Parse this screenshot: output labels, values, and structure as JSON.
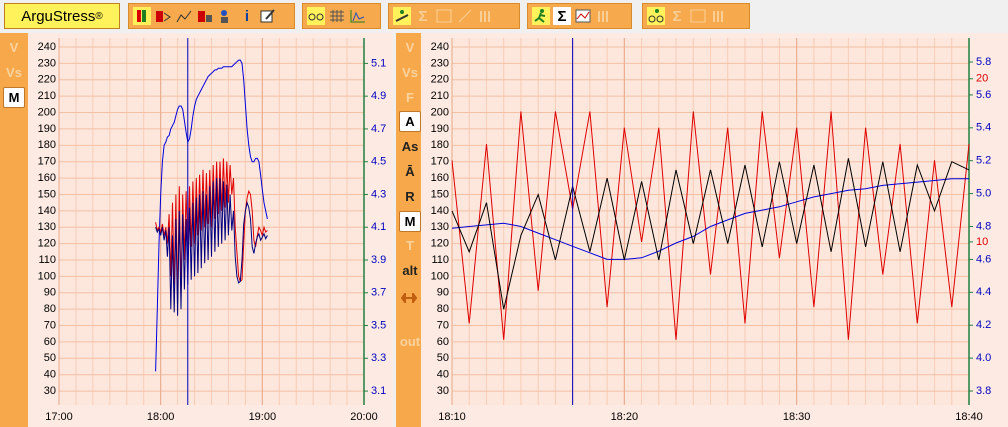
{
  "toolbar": {
    "title": "ArguStress",
    "title_mark": "®",
    "info": "i",
    "sigma": [
      "Σ",
      "Σ",
      "Σ"
    ]
  },
  "left_panel": {
    "buttons": [
      {
        "label": "V",
        "state": "off"
      },
      {
        "label": "Vs",
        "state": "off"
      },
      {
        "label": "M",
        "state": "active"
      }
    ]
  },
  "right_panel": {
    "buttons": [
      {
        "label": "V",
        "state": "off"
      },
      {
        "label": "Vs",
        "state": "off"
      },
      {
        "label": "F",
        "state": "off"
      },
      {
        "label": "A",
        "state": "active"
      },
      {
        "label": "As",
        "state": "on"
      },
      {
        "label": "Ā",
        "state": "on"
      },
      {
        "label": "R",
        "state": "on"
      },
      {
        "label": "M",
        "state": "active"
      },
      {
        "label": "T",
        "state": "off"
      },
      {
        "label": "alt",
        "state": "on"
      },
      {
        "label": "out",
        "state": "off"
      }
    ]
  },
  "chart_data": [
    {
      "type": "line",
      "grid": true,
      "cursor": "18:16",
      "xlim": [
        "17:00",
        "20:00"
      ],
      "xticks": [
        "17:00",
        "18:00",
        "19:00",
        "20:00"
      ],
      "ylim": [
        21.5,
        245.5
      ],
      "yticks": [
        30,
        40,
        50,
        60,
        70,
        80,
        90,
        100,
        110,
        120,
        130,
        140,
        150,
        160,
        170,
        180,
        190,
        200,
        210,
        220,
        230,
        240
      ],
      "y2lim": [
        3.015,
        5.255
      ],
      "y2ticks": [
        3.1,
        3.3,
        3.5,
        3.7,
        3.9,
        4.1,
        4.3,
        4.5,
        4.7,
        4.9,
        5.1
      ],
      "y2color": "#0000c0",
      "x": [
        "17:57",
        "17:58",
        "17:59",
        "18:00",
        "18:01",
        "18:02",
        "18:03",
        "18:04",
        "18:05",
        "18:06",
        "18:07",
        "18:08",
        "18:09",
        "18:10",
        "18:11",
        "18:12",
        "18:13",
        "18:14",
        "18:15",
        "18:16",
        "18:17",
        "18:18",
        "18:19",
        "18:20",
        "18:21",
        "18:22",
        "18:23",
        "18:24",
        "18:25",
        "18:26",
        "18:27",
        "18:28",
        "18:29",
        "18:30",
        "18:31",
        "18:32",
        "18:33",
        "18:34",
        "18:35",
        "18:36",
        "18:37",
        "18:38",
        "18:39",
        "18:40",
        "18:41",
        "18:42",
        "18:43",
        "18:44",
        "18:45",
        "18:46",
        "18:47",
        "18:48",
        "18:49",
        "18:50",
        "18:51",
        "18:52",
        "18:53",
        "18:54",
        "18:55",
        "18:56",
        "18:57",
        "18:58",
        "18:59",
        "19:00",
        "19:01",
        "19:02",
        "19:03"
      ],
      "series": [
        {
          "color": "#0000e0",
          "axis": "y2",
          "values": [
            3.22,
            3.6,
            4.0,
            4.3,
            4.5,
            4.6,
            4.62,
            4.65,
            4.66,
            4.7,
            4.72,
            4.74,
            4.78,
            4.82,
            4.84,
            4.84,
            4.82,
            4.75,
            4.68,
            4.62,
            4.64,
            4.7,
            4.78,
            4.84,
            4.88,
            4.9,
            4.92,
            4.94,
            4.96,
            4.98,
            5.0,
            5.02,
            5.03,
            5.04,
            5.05,
            5.06,
            5.06,
            5.07,
            5.07,
            5.07,
            5.08,
            5.08,
            5.08,
            5.08,
            5.08,
            5.08,
            5.09,
            5.1,
            5.11,
            5.12,
            5.12,
            5.1,
            5.0,
            4.85,
            4.7,
            4.6,
            4.53,
            4.5,
            4.5,
            4.52,
            4.52,
            4.5,
            4.42,
            4.33,
            4.25,
            4.2,
            4.15
          ]
        },
        {
          "color": "#e00000",
          "values": [
            133,
            128,
            130,
            127,
            132,
            125,
            130,
            120,
            138,
            100,
            145,
            95,
            150,
            85,
            155,
            90,
            150,
            110,
            152,
            115,
            155,
            118,
            158,
            120,
            160,
            125,
            162,
            128,
            165,
            130,
            163,
            132,
            165,
            130,
            168,
            135,
            170,
            138,
            170,
            140,
            172,
            142,
            170,
            145,
            168,
            150,
            160,
            130,
            115,
            100,
            97,
            98,
            120,
            140,
            148,
            152,
            150,
            140,
            122,
            118,
            125,
            130,
            128,
            125,
            130,
            127,
            128
          ]
        },
        {
          "color": "#000080",
          "values": [
            130,
            127,
            129,
            125,
            130,
            122,
            128,
            112,
            130,
            80,
            125,
            78,
            135,
            76,
            140,
            80,
            138,
            92,
            135,
            95,
            142,
            98,
            145,
            100,
            148,
            102,
            150,
            105,
            152,
            108,
            150,
            110,
            155,
            112,
            158,
            115,
            160,
            118,
            160,
            120,
            158,
            122,
            156,
            125,
            150,
            128,
            140,
            112,
            100,
            96,
            97,
            110,
            132,
            140,
            145,
            142,
            135,
            118,
            114,
            120,
            124,
            126,
            122,
            124,
            126,
            123,
            125
          ]
        }
      ]
    },
    {
      "type": "line",
      "grid": true,
      "cursor": "18:17",
      "xlim": [
        "18:10",
        "18:40"
      ],
      "xticks": [
        "18:10",
        "18:20",
        "18:30",
        "18:40"
      ],
      "ylim": [
        21.5,
        245.5
      ],
      "yticks": [
        30,
        40,
        50,
        60,
        70,
        80,
        90,
        100,
        110,
        120,
        130,
        140,
        150,
        160,
        170,
        180,
        190,
        200,
        210,
        220,
        230,
        240
      ],
      "y2lim": [
        3.715,
        5.946
      ],
      "y2ticks": [
        3.8,
        {
          "value": 4,
          "label": "4.0"
        },
        4.2,
        4.4,
        4.6,
        4.8,
        {
          "value": 5,
          "label": "5.0"
        },
        5.2,
        5.4,
        5.6,
        5.8
      ],
      "y2color": "#0000c0",
      "y3lim": [
        0,
        22.5
      ],
      "y3ticks": [
        10,
        20
      ],
      "y3color": "#e00000",
      "x": [
        "18:10",
        "18:11",
        "18:12",
        "18:13",
        "18:14",
        "18:15",
        "18:16",
        "18:17",
        "18:18",
        "18:19",
        "18:20",
        "18:21",
        "18:22",
        "18:23",
        "18:24",
        "18:25",
        "18:26",
        "18:27",
        "18:28",
        "18:29",
        "18:30",
        "18:31",
        "18:32",
        "18:33",
        "18:34",
        "18:35",
        "18:36",
        "18:37",
        "18:38",
        "18:39",
        "18:40"
      ],
      "series": [
        {
          "color": "#e00000",
          "axis": "y3",
          "values": [
            15,
            5,
            16,
            4,
            18,
            7,
            18,
            12,
            18,
            6,
            17,
            10,
            17,
            4,
            18,
            8,
            17,
            5,
            18,
            9,
            17,
            6,
            18,
            4,
            17,
            8,
            16,
            5,
            15,
            6,
            16
          ]
        },
        {
          "color": "#0000e0",
          "axis": "y2",
          "values": [
            4.79,
            4.8,
            4.81,
            4.82,
            4.8,
            4.76,
            4.72,
            4.68,
            4.64,
            4.6,
            4.6,
            4.61,
            4.65,
            4.7,
            4.74,
            4.8,
            4.84,
            4.88,
            4.9,
            4.92,
            4.95,
            4.98,
            5.0,
            5.02,
            5.03,
            5.05,
            5.06,
            5.07,
            5.08,
            5.09,
            5.09
          ]
        },
        {
          "color": "#000000",
          "values": [
            140,
            115,
            145,
            80,
            125,
            150,
            110,
            155,
            115,
            160,
            110,
            158,
            110,
            165,
            120,
            165,
            120,
            168,
            118,
            170,
            120,
            168,
            115,
            172,
            118,
            170,
            115,
            168,
            140,
            170,
            165
          ]
        }
      ]
    }
  ]
}
